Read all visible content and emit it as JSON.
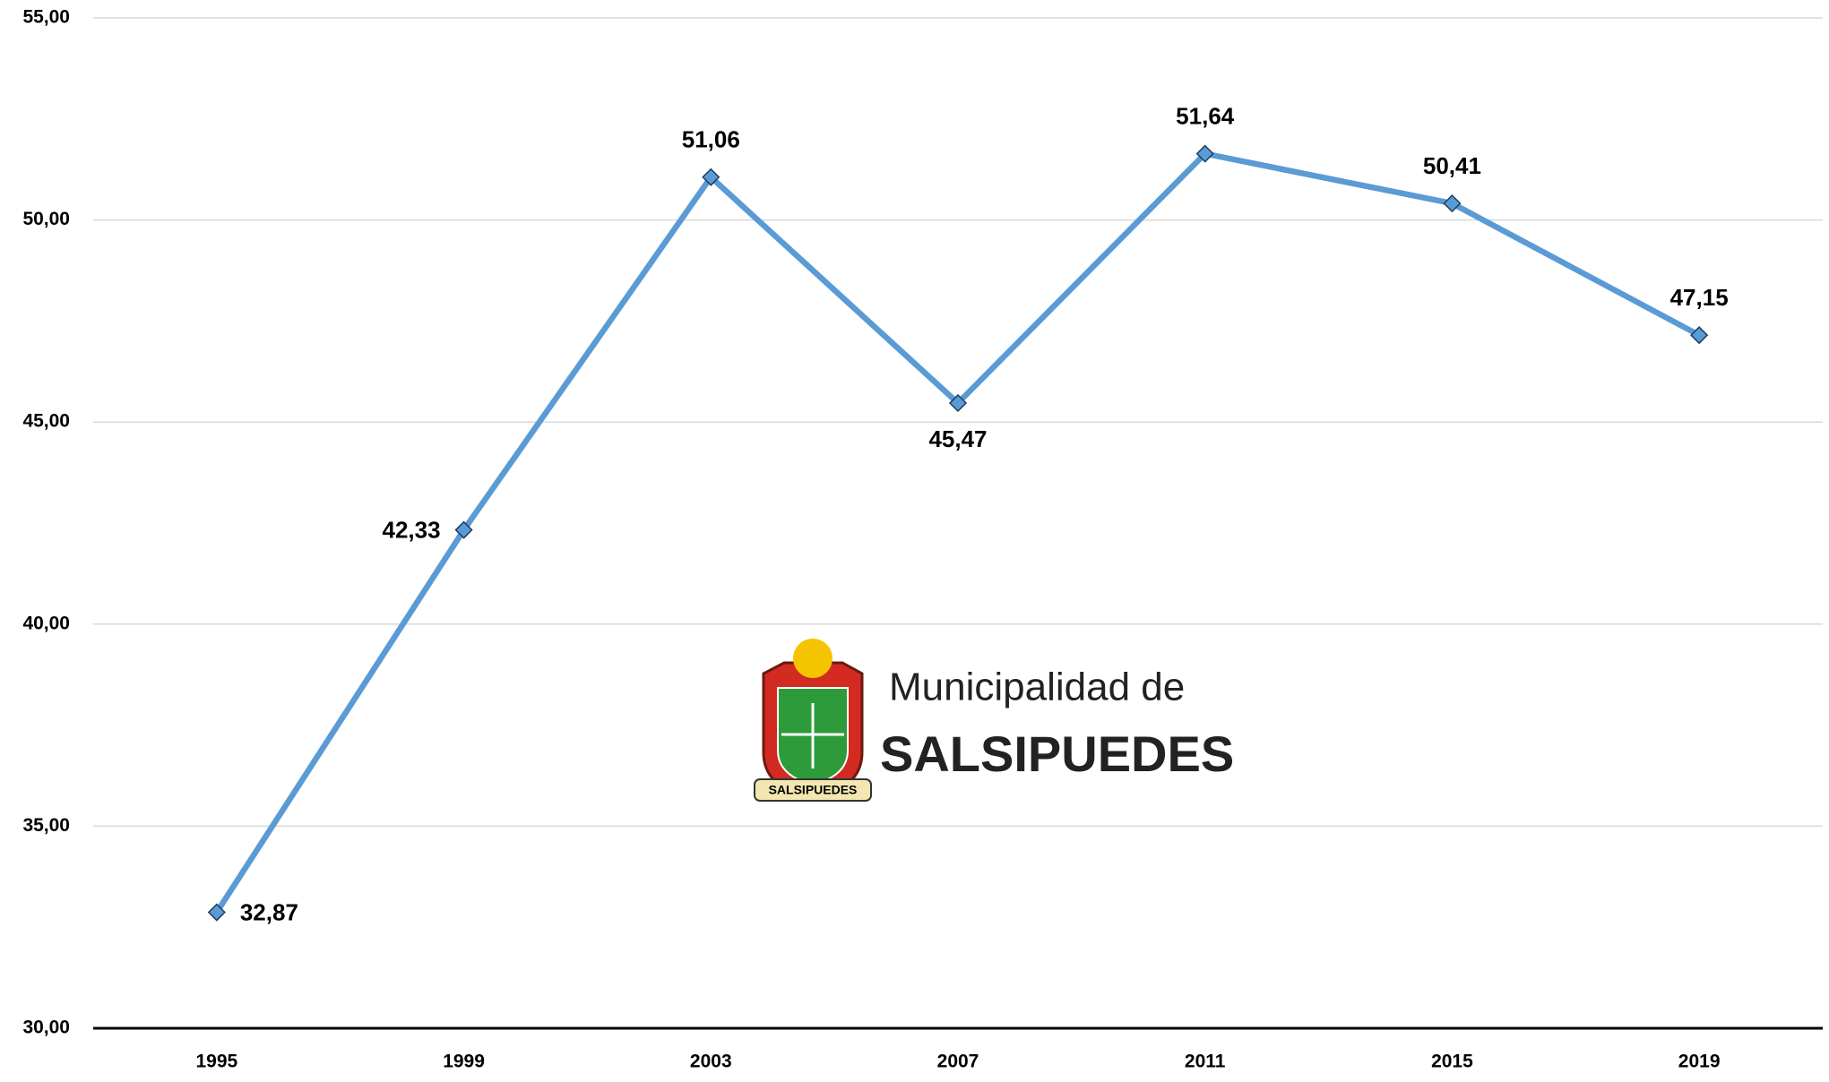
{
  "chart_data": {
    "type": "line",
    "categories": [
      "1995",
      "1999",
      "2003",
      "2007",
      "2011",
      "2015",
      "2019"
    ],
    "series": [
      {
        "name": null,
        "color": "#5b9bd5",
        "values": [
          32.87,
          42.33,
          51.06,
          45.47,
          51.64,
          50.41,
          47.15
        ],
        "value_labels": [
          "32,87",
          "42,33",
          "51,06",
          "45,47",
          "51,64",
          "50,41",
          "47,15"
        ]
      }
    ],
    "ylim": [
      30,
      55
    ],
    "yticks": [
      {
        "value": 30,
        "label": "30,00"
      },
      {
        "value": 35,
        "label": "35,00"
      },
      {
        "value": 40,
        "label": "40,00"
      },
      {
        "value": 45,
        "label": "45,00"
      },
      {
        "value": 50,
        "label": "50,00"
      },
      {
        "value": 55,
        "label": "55,00"
      }
    ],
    "grid": true
  },
  "watermark": {
    "line1": "Municipalidad de",
    "line2": "SALSIPUEDES",
    "badge": "SALSIPUEDES"
  }
}
